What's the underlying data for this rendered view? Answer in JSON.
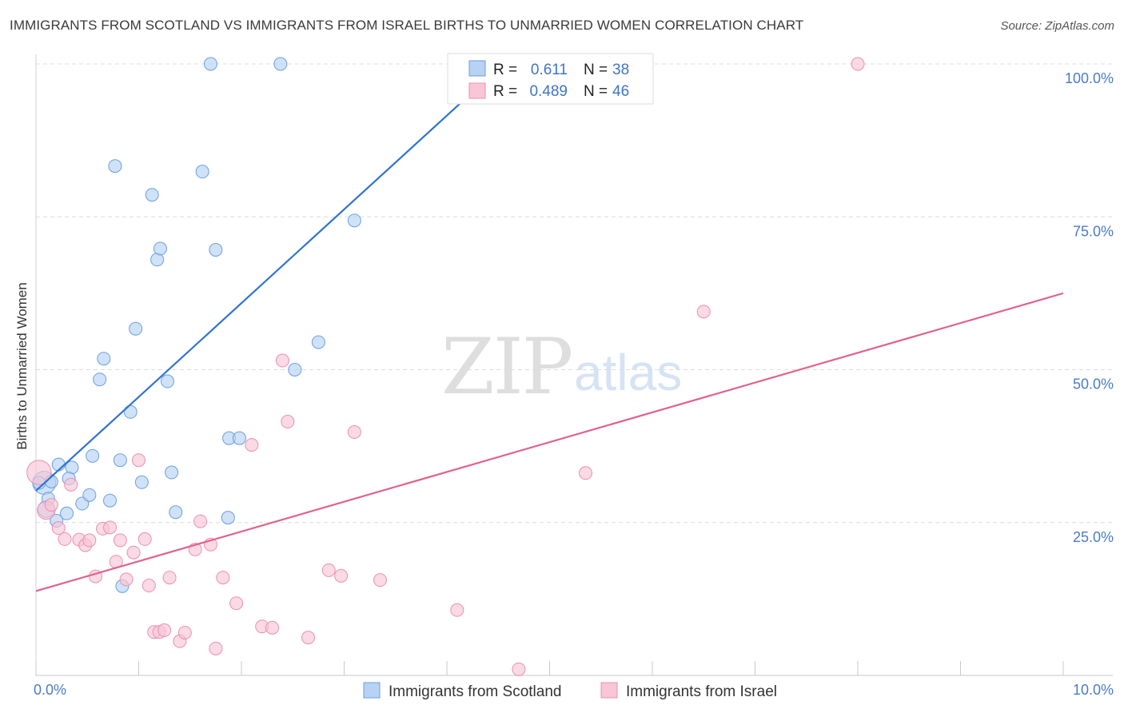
{
  "title": "IMMIGRANTS FROM SCOTLAND VS IMMIGRANTS FROM ISRAEL BIRTHS TO UNMARRIED WOMEN CORRELATION CHART",
  "source": "Source: ZipAtlas.com",
  "watermark": {
    "zip": "ZIP",
    "atlas": "atlas"
  },
  "colors": {
    "scotland_fill": "#b7d2f3",
    "scotland_stroke": "#6a9fe0",
    "scotland_line": "#2f73d2",
    "israel_fill": "#f8c6d6",
    "israel_stroke": "#ec8fad",
    "israel_line": "#e0628e",
    "tick_text": "#4a7cc9",
    "grid": "#dcdcdc"
  },
  "stats_box": {
    "rows": [
      {
        "r_label": "R =",
        "r_value": "0.611",
        "n_label": "N =",
        "n_value": "38"
      },
      {
        "r_label": "R =",
        "r_value": "0.489",
        "n_label": "N =",
        "n_value": "46"
      }
    ]
  },
  "legend": {
    "items": [
      "Immigrants from Scotland",
      "Immigrants from Israel"
    ]
  },
  "chart_data": {
    "type": "scatter",
    "title": "IMMIGRANTS FROM SCOTLAND VS IMMIGRANTS FROM ISRAEL BIRTHS TO UNMARRIED WOMEN CORRELATION CHART",
    "xlabel": "",
    "ylabel": "Births to Unmarried Women",
    "xlim": [
      0,
      10
    ],
    "ylim": [
      0,
      100
    ],
    "x_tick_labels": [
      "0.0%",
      "10.0%"
    ],
    "y_ticks": [
      25,
      50,
      75,
      100
    ],
    "y_tick_labels": [
      "25.0%",
      "50.0%",
      "75.0%",
      "100.0%"
    ],
    "grid": true,
    "series": [
      {
        "name": "Immigrants from Scotland",
        "R": 0.611,
        "N": 38,
        "trend": {
          "x0": 0.0,
          "y0": 30.2,
          "x1": 4.55,
          "y1": 100.0
        },
        "points": [
          [
            0.08,
            31.5,
            1.8
          ],
          [
            0.1,
            27.2,
            1.3
          ],
          [
            0.12,
            28.9,
            1
          ],
          [
            0.15,
            31.7,
            1
          ],
          [
            0.2,
            25.3,
            1
          ],
          [
            0.22,
            34.5,
            1
          ],
          [
            0.3,
            26.5,
            1
          ],
          [
            0.35,
            34.0,
            1
          ],
          [
            0.32,
            32.2,
            1
          ],
          [
            0.45,
            28.1,
            1
          ],
          [
            0.52,
            29.5,
            1
          ],
          [
            0.55,
            35.9,
            1
          ],
          [
            0.62,
            48.4,
            1
          ],
          [
            0.66,
            51.8,
            1
          ],
          [
            0.72,
            28.6,
            1
          ],
          [
            0.77,
            83.3,
            1
          ],
          [
            0.82,
            35.2,
            1
          ],
          [
            0.92,
            43.1,
            1
          ],
          [
            0.97,
            56.7,
            1
          ],
          [
            1.03,
            31.6,
            1
          ],
          [
            1.13,
            78.6,
            1
          ],
          [
            1.18,
            68.0,
            1
          ],
          [
            1.21,
            69.8,
            1
          ],
          [
            1.28,
            48.1,
            1
          ],
          [
            1.32,
            33.2,
            1
          ],
          [
            1.36,
            26.7,
            1
          ],
          [
            1.62,
            82.4,
            1
          ],
          [
            1.7,
            100.0,
            1
          ],
          [
            1.75,
            69.6,
            1
          ],
          [
            1.87,
            25.8,
            1
          ],
          [
            1.88,
            38.8,
            1
          ],
          [
            1.98,
            38.8,
            1
          ],
          [
            2.38,
            100.0,
            1
          ],
          [
            2.52,
            50.0,
            1
          ],
          [
            2.75,
            54.5,
            1
          ],
          [
            3.1,
            74.4,
            1
          ],
          [
            0.84,
            14.6,
            1
          ],
          [
            0.03,
            31.5,
            1
          ]
        ]
      },
      {
        "name": "Immigrants from Israel",
        "R": 0.489,
        "N": 46,
        "trend": {
          "x0": 0.0,
          "y0": 13.8,
          "x1": 10.0,
          "y1": 62.5
        },
        "points": [
          [
            0.03,
            33.2,
            1.9
          ],
          [
            0.1,
            27.0,
            1.4
          ],
          [
            0.15,
            27.9,
            1
          ],
          [
            0.22,
            24.1,
            1
          ],
          [
            0.28,
            22.3,
            1
          ],
          [
            0.34,
            31.2,
            1
          ],
          [
            0.42,
            22.2,
            1
          ],
          [
            0.48,
            21.3,
            1
          ],
          [
            0.52,
            22.1,
            1
          ],
          [
            0.58,
            16.2,
            1
          ],
          [
            0.65,
            24.0,
            1
          ],
          [
            0.72,
            24.2,
            1
          ],
          [
            0.78,
            18.6,
            1
          ],
          [
            0.82,
            22.1,
            1
          ],
          [
            0.88,
            15.7,
            1
          ],
          [
            0.95,
            20.1,
            1
          ],
          [
            1.0,
            35.2,
            1
          ],
          [
            1.06,
            22.3,
            1
          ],
          [
            1.1,
            14.7,
            1
          ],
          [
            1.15,
            7.1,
            1
          ],
          [
            1.2,
            7.1,
            1
          ],
          [
            1.25,
            7.4,
            1
          ],
          [
            1.3,
            16.0,
            1
          ],
          [
            1.4,
            5.6,
            1
          ],
          [
            1.45,
            7.0,
            1
          ],
          [
            1.55,
            20.6,
            1
          ],
          [
            1.6,
            25.2,
            1
          ],
          [
            1.7,
            21.4,
            1
          ],
          [
            1.75,
            4.4,
            1
          ],
          [
            1.82,
            16.0,
            1
          ],
          [
            1.95,
            11.8,
            1
          ],
          [
            2.1,
            37.7,
            1
          ],
          [
            2.2,
            8.0,
            1
          ],
          [
            2.3,
            7.8,
            1
          ],
          [
            2.4,
            51.5,
            1
          ],
          [
            2.45,
            41.5,
            1
          ],
          [
            2.65,
            6.2,
            1
          ],
          [
            2.85,
            17.2,
            1
          ],
          [
            2.97,
            16.3,
            1
          ],
          [
            3.1,
            39.8,
            1
          ],
          [
            3.35,
            15.6,
            1
          ],
          [
            4.1,
            10.7,
            1
          ],
          [
            4.7,
            1.0,
            1
          ],
          [
            5.35,
            33.1,
            1
          ],
          [
            6.5,
            59.5,
            1
          ],
          [
            8.0,
            100.0,
            1
          ]
        ]
      }
    ]
  }
}
